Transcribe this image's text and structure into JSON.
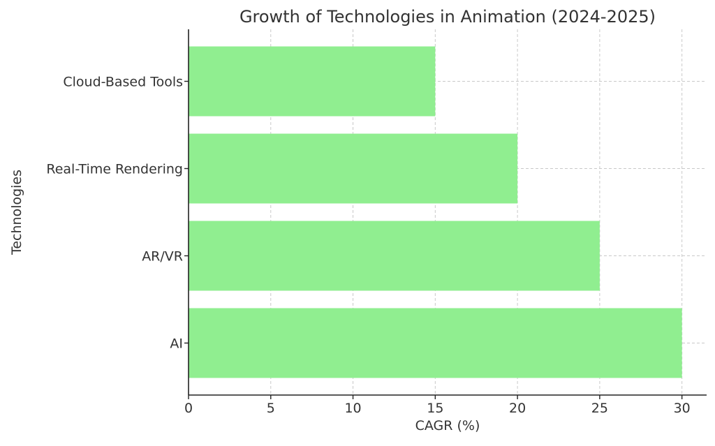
{
  "chart_data": {
    "type": "bar",
    "orientation": "horizontal",
    "title": "Growth of Technologies in Animation (2024-2025)",
    "xlabel": "CAGR (%)",
    "ylabel": "Technologies",
    "categories": [
      "AI",
      "AR/VR",
      "Real-Time Rendering",
      "Cloud-Based Tools"
    ],
    "values": [
      30,
      25,
      20,
      15
    ],
    "xlim": [
      0,
      31.5
    ],
    "xticks": [
      "0",
      "5",
      "10",
      "15",
      "20",
      "25",
      "30"
    ],
    "grid": true,
    "bar_color": "#90ee90"
  }
}
